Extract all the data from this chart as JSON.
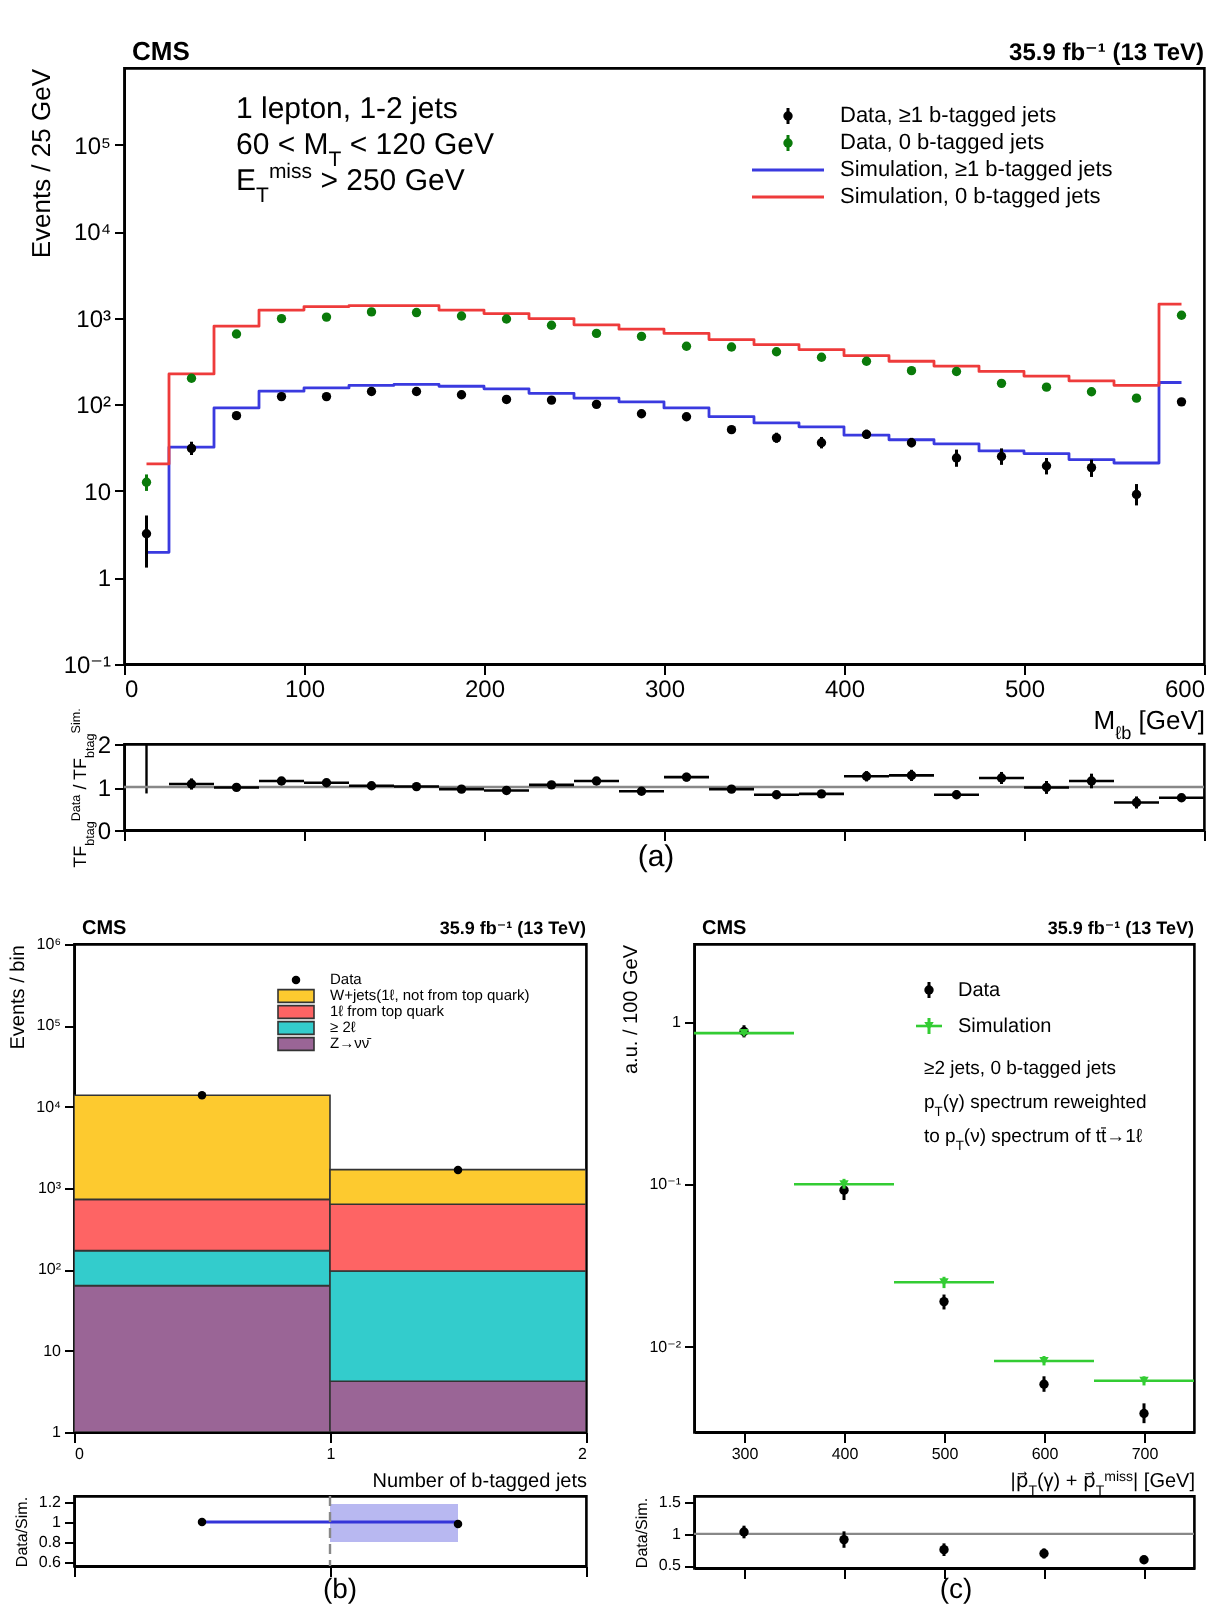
{
  "chart_data": [
    {
      "type": "step",
      "title": "CMS",
      "subtitle": "35.9 fb⁻¹ (13 TeV)",
      "xlabel": "M$_{ℓb}$ [GeV]",
      "ylabel": "Events / 25 GeV",
      "annotations": [
        "1 lepton, 1-2 jets",
        "60 < M$_{T}$ < 120 GeV",
        "E$_{T}$$^{miss}$ > 250 GeV"
      ],
      "log": "y",
      "legend": "top right",
      "x": [
        12.5,
        37.5,
        62.5,
        87.5,
        112.5,
        137.5,
        162.5,
        187.5,
        212.5,
        237.5,
        262.5,
        287.5,
        312.5,
        337.5,
        362.5,
        387.5,
        412.5,
        437.5,
        462.5,
        487.5,
        512.5,
        537.5,
        562.5,
        587.5
      ],
      "xlim": [
        0,
        600
      ],
      "xticks": [
        0,
        100,
        200,
        300,
        400,
        500,
        600
      ],
      "ylim": [
        0.1,
        770000
      ],
      "yticks": [
        {
          "value": 0.1,
          "label": "10⁻¹"
        },
        1,
        10,
        {
          "value": 100,
          "label": "10²"
        },
        {
          "value": 1000,
          "label": "10³"
        },
        {
          "value": 10000,
          "label": "10⁴"
        },
        {
          "value": 100000,
          "label": "10⁵"
        }
      ],
      "series": [
        {
          "name": "Data, ≥1 b-tagged jets",
          "type": "scatter",
          "marker": "circle",
          "color": "#000000",
          "values": [
            3.2,
            31,
            74,
            123,
            123,
            141,
            141,
            129,
            114,
            112,
            100,
            78,
            72,
            51,
            41,
            36,
            45,
            36,
            24,
            25,
            19.5,
            18.6,
            9.1,
            107
          ],
          "errors": [
            [
              1.3,
              5.2
            ],
            [
              26,
              37
            ],
            null,
            null,
            null,
            null,
            null,
            null,
            null,
            null,
            null,
            null,
            null,
            null,
            [
              36,
              47
            ],
            [
              31,
              42
            ],
            [
              40,
              51
            ],
            [
              32,
              41
            ],
            [
              19,
              30
            ],
            [
              20,
              31
            ],
            [
              15.5,
              24
            ],
            [
              14.5,
              23
            ],
            [
              6.8,
              12
            ],
            null
          ]
        },
        {
          "name": "Data, 0 b-tagged jets",
          "type": "scatter",
          "marker": "circle",
          "color": "#0a7a0a",
          "values": [
            12.6,
            200,
            650,
            980,
            1020,
            1170,
            1150,
            1050,
            970,
            820,
            660,
            610,
            470,
            460,
            405,
            350,
            315,
            245,
            240,
            175,
            158,
            140,
            118,
            1070
          ],
          "errors": [
            [
              10,
              15.5
            ],
            null,
            null,
            null,
            null,
            null,
            null,
            null,
            null,
            null,
            null,
            null,
            null,
            null,
            null,
            null,
            null,
            null,
            null,
            null,
            null,
            null,
            null,
            null
          ]
        },
        {
          "name": "Simulation, ≥1 b-tagged jets",
          "color": "#3a3adf",
          "values": [
            1.95,
            32,
            91,
            142,
            155,
            166,
            170,
            162,
            151,
            134,
            118,
            107,
            91,
            72,
            61,
            55,
            44,
            39,
            35,
            29,
            27,
            23,
            21,
            179
          ]
        },
        {
          "name": "Simulation, 0 b-tagged jets",
          "color": "#ee3b3b",
          "values": [
            20.5,
            225,
            800,
            1230,
            1350,
            1380,
            1380,
            1230,
            1120,
            980,
            830,
            740,
            660,
            560,
            490,
            430,
            365,
            315,
            277,
            240,
            212,
            187,
            166,
            1440
          ]
        }
      ]
    },
    {
      "type": "scatter",
      "ylabel": "TF$_{btag}$$^{Data}$ / TF$_{btag}$$^{Sim.}$",
      "annotations": [
        "(a)"
      ],
      "tick_labels": "y",
      "x": [
        37.5,
        62.5,
        87.5,
        112.5,
        137.5,
        162.5,
        187.5,
        212.5,
        237.5,
        262.5,
        287.5,
        312.5,
        337.5,
        362.5,
        387.5,
        412.5,
        437.5,
        462.5,
        487.5,
        512.5,
        537.5,
        562.5,
        587.5
      ],
      "xlim": [
        0,
        600
      ],
      "xticks": [
        0,
        100,
        200,
        300,
        400,
        500,
        600
      ],
      "ylim": [
        0,
        2
      ],
      "yticks": [
        0,
        1,
        2
      ],
      "ref_lines": [
        {
          "axis": "y",
          "value": 1,
          "color": "#888888"
        }
      ],
      "series": [
        {
          "type": "line",
          "color": "#000000",
          "x": [
            12.5,
            12.5
          ],
          "values": [
            0.85,
            2
          ]
        },
        {
          "color": "#000000",
          "marker": "circle",
          "values": [
            1.07,
            0.99,
            1.14,
            1.1,
            1.03,
            1.01,
            0.95,
            0.92,
            1.05,
            1.14,
            0.9,
            1.23,
            0.95,
            0.82,
            0.84,
            1.25,
            1.27,
            0.82,
            1.21,
            0.99,
            1.14,
            0.64,
            0.75
          ],
          "errors": [
            0.13,
            0.06,
            0.06,
            0.05,
            0.05,
            0.05,
            0.05,
            0.06,
            0.06,
            0.08,
            0.07,
            0.1,
            0.08,
            0.08,
            0.08,
            0.12,
            0.13,
            0.1,
            0.14,
            0.15,
            0.17,
            0.14,
            0.05
          ],
          "xerrors": [
            12.5,
            12.5,
            12.5,
            12.5,
            12.5,
            12.5,
            12.5,
            12.5,
            12.5,
            12.5,
            12.5,
            12.5,
            12.5,
            12.5,
            12.5,
            12.5,
            12.5,
            12.5,
            12.5,
            12.5,
            12.5,
            12.5,
            12.5
          ]
        }
      ]
    },
    {
      "type": "bar",
      "title": "CMS",
      "subtitle": "35.9 fb⁻¹ (13 TeV)",
      "xlabel": "Number of b-tagged jets",
      "ylabel": "Events / bin",
      "log": "y",
      "legend": "top right",
      "stacked": true,
      "x": [
        0.5,
        1.5
      ],
      "xlim": [
        0,
        2
      ],
      "xticks": [
        0,
        1,
        2
      ],
      "ylim": [
        1,
        1000000
      ],
      "yticks": [
        1,
        10,
        {
          "value": 100,
          "label": "10²"
        },
        {
          "value": 1000,
          "label": "10³"
        },
        {
          "value": 10000,
          "label": "10⁴"
        },
        {
          "value": 100000,
          "label": "10⁵"
        },
        {
          "value": 1000000,
          "label": "10⁶"
        }
      ],
      "series": [
        {
          "name": "Z→νν̄",
          "color": "#9a6596",
          "values": [
            63,
            4.2
          ]
        },
        {
          "name": "≥ 2ℓ",
          "color": "#33cccc",
          "values": [
            107,
            91
          ]
        },
        {
          "name": "1ℓ from top quark",
          "color": "#fe6464",
          "values": [
            555,
            535
          ]
        },
        {
          "name": "W+jets(1ℓ, not from top quark)",
          "color": "#fdca2f",
          "values": [
            13075,
            1050
          ]
        },
        {
          "name": "Data",
          "type": "scatter",
          "marker": "circle",
          "color": "#000000",
          "values": [
            13800,
            1670
          ]
        }
      ]
    },
    {
      "type": "step",
      "ylabel": "Data/Sim.",
      "annotations": [
        "(b)"
      ],
      "tick_labels": "y",
      "x": [
        0.5,
        1.5
      ],
      "xlim": [
        0,
        2
      ],
      "xticks": [
        0,
        1,
        2
      ],
      "ylim": [
        0.56,
        1.26
      ],
      "yticks": [
        0.6,
        0.8,
        1,
        1.2
      ],
      "ref_lines": [
        {
          "axis": "x",
          "value": 1,
          "color": "#888888",
          "line_style": "dashed"
        }
      ],
      "series": [
        {
          "color": "#3434d8",
          "values": [
            1,
            1
          ],
          "lower": [
            0.99,
            0.8
          ],
          "upper": [
            1.01,
            1.18
          ]
        },
        {
          "type": "scatter",
          "marker": "circle",
          "color": "#000000",
          "values": [
            1.0,
            0.98
          ]
        }
      ]
    },
    {
      "type": "scatter",
      "title": "CMS",
      "subtitle": "35.9 fb⁻¹ (13 TeV)",
      "xlabel": "|p⃗$_{T}$(γ) + p⃗$_{T}$$^{miss}$| [GeV]",
      "ylabel": "a.u. / 100 GeV",
      "annotations": [
        "≥2 jets, 0 b-tagged jets",
        "p$_{T}$(γ) spectrum reweighted",
        "to p$_{T}$(ν) spectrum of tt̄→1ℓ"
      ],
      "log": "y",
      "legend": "top right",
      "marker": "circle",
      "x": [
        300,
        400,
        500,
        600,
        700
      ],
      "xlim": [
        250,
        750
      ],
      "xticks": [
        300,
        400,
        500,
        600,
        700
      ],
      "ylim": [
        0.003,
        3
      ],
      "yticks": [
        {
          "value": 0.01,
          "label": "10⁻²"
        },
        {
          "value": 0.1,
          "label": "10⁻¹"
        },
        1
      ],
      "series": [
        {
          "name": "Data",
          "color": "#000000",
          "values": [
            0.87,
            0.092,
            0.019,
            0.0059,
            0.0039
          ],
          "errors": [
            [
              0.8,
              0.95
            ],
            [
              0.08,
              0.105
            ],
            [
              0.017,
              0.021
            ],
            [
              0.0053,
              0.0066
            ],
            [
              0.0034,
              0.0045
            ]
          ]
        },
        {
          "name": "Simulation",
          "color": "#33cc33",
          "marker": "triangle",
          "values": [
            0.85,
            0.1,
            0.025,
            0.0082,
            0.0062
          ],
          "errors": [
            null,
            [
              0.094,
              0.108
            ],
            [
              0.023,
              0.027
            ],
            [
              0.0077,
              0.0088
            ],
            [
              0.0058,
              0.0066
            ]
          ],
          "xerrors": [
            50,
            50,
            50,
            50,
            50
          ]
        }
      ]
    },
    {
      "type": "scatter",
      "ylabel": "Data/Sim.",
      "annotations": [
        "(c)"
      ],
      "tick_labels": "y",
      "marker": "circle",
      "x": [
        300,
        400,
        500,
        600,
        700
      ],
      "xlim": [
        250,
        750
      ],
      "xticks": [
        300,
        400,
        500,
        600,
        700
      ],
      "ylim": [
        0.46,
        1.6
      ],
      "yticks": [
        0.5,
        1,
        1.5
      ],
      "ref_lines": [
        {
          "axis": "y",
          "value": 1,
          "color": "#888888"
        }
      ],
      "series": [
        {
          "color": "#000000",
          "values": [
            1.03,
            0.91,
            0.75,
            0.69,
            0.59
          ],
          "errors": [
            0.1,
            0.13,
            0.1,
            0.08,
            0.06
          ]
        }
      ]
    }
  ]
}
